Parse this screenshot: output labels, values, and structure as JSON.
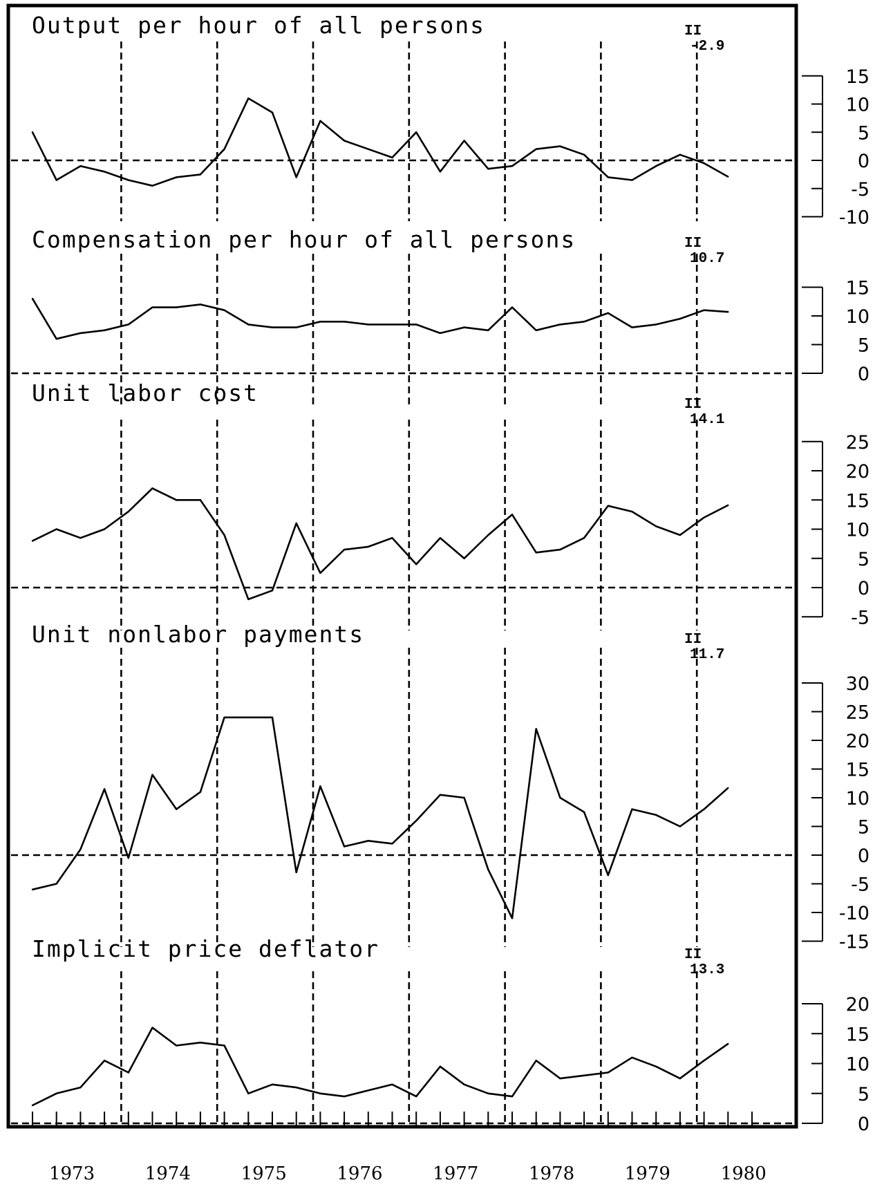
{
  "chart_data": {
    "type": "line",
    "x_quarters": [
      "1973 I",
      "1973 II",
      "1973 III",
      "1973 IV",
      "1974 I",
      "1974 II",
      "1974 III",
      "1974 IV",
      "1975 I",
      "1975 II",
      "1975 III",
      "1975 IV",
      "1976 I",
      "1976 II",
      "1976 III",
      "1976 IV",
      "1977 I",
      "1977 II",
      "1977 III",
      "1977 IV",
      "1978 I",
      "1978 II",
      "1978 III",
      "1978 IV",
      "1979 I",
      "1979 II",
      "1979 III",
      "1979 IV",
      "1980 I",
      "1980 II"
    ],
    "year_labels": [
      "1973",
      "1974",
      "1975",
      "1976",
      "1977",
      "1978",
      "1979",
      "1980"
    ],
    "dashed_years": [
      "1974",
      "1975",
      "1976",
      "1977",
      "1978",
      "1979",
      "1980"
    ],
    "panels": [
      {
        "title": "Output per hour of all persons",
        "callout_quarter": "II",
        "callout_value": "-2.9",
        "ylim": [
          -10,
          15
        ],
        "yticks": [
          "-10",
          "-5",
          "0",
          "5",
          "10",
          "15"
        ],
        "reference_zero": true,
        "values": [
          5,
          -3.5,
          -1,
          -2,
          -3.5,
          -4.5,
          -3,
          -2.5,
          2,
          11,
          8.5,
          -3,
          7,
          3.5,
          2,
          0.5,
          5,
          -2,
          3.5,
          -1.5,
          -1,
          2,
          2.5,
          1,
          -3,
          -3.5,
          -1,
          1,
          -0.5,
          -2.9
        ],
        "dashed_lines_through": [
          "1974",
          "1975",
          "1976",
          "1977",
          "1978",
          "1979",
          "1980"
        ]
      },
      {
        "title": "Compensation per hour of all persons",
        "callout_quarter": "II",
        "callout_value": "10.7",
        "ylim": [
          0,
          15
        ],
        "yticks": [
          "0",
          "5",
          "10",
          "15"
        ],
        "reference_zero": true,
        "values": [
          13,
          6,
          7,
          7.5,
          8.5,
          11.5,
          11.5,
          12,
          11,
          8.5,
          8,
          8,
          9,
          9,
          8.5,
          8.5,
          8.5,
          7,
          8,
          7.5,
          11.5,
          7.5,
          8.5,
          9,
          10.5,
          8,
          8.5,
          9.5,
          11,
          10.7
        ],
        "dashed_lines_through": [
          "1974",
          "1975",
          "1976",
          "1977",
          "1978",
          "1979",
          "1980"
        ]
      },
      {
        "title": "Unit labor cost",
        "callout_quarter": "II",
        "callout_value": "14.1",
        "ylim": [
          -5,
          25
        ],
        "yticks": [
          "-5",
          "0",
          "5",
          "10",
          "15",
          "20",
          "25"
        ],
        "reference_zero": true,
        "values": [
          8,
          10,
          8.5,
          10,
          13,
          17,
          15,
          15,
          9,
          -2,
          -0.5,
          11,
          2.5,
          6.5,
          7,
          8.5,
          4,
          8.5,
          5,
          9,
          12.5,
          6,
          6.5,
          8.5,
          14,
          13,
          10.5,
          9,
          12,
          14.1
        ],
        "dashed_lines_through": [
          "1974",
          "1975",
          "1976",
          "1977",
          "1978",
          "1979",
          "1980"
        ]
      },
      {
        "title": "Unit nonlabor payments",
        "callout_quarter": "II",
        "callout_value": "11.7",
        "ylim": [
          -15,
          30
        ],
        "yticks": [
          "-15",
          "-10",
          "-5",
          "0",
          "5",
          "10",
          "15",
          "20",
          "25",
          "30"
        ],
        "reference_zero": true,
        "values": [
          -6,
          -5,
          1,
          11.5,
          -0.5,
          14,
          8,
          11,
          24,
          24,
          24,
          -3,
          12,
          1.5,
          2.5,
          2,
          6,
          10.5,
          10,
          -2.5,
          -11,
          22,
          10,
          7.5,
          -3.5,
          8,
          7,
          5,
          8,
          11.7
        ],
        "dashed_lines_through": [
          "1974",
          "1975",
          "1976",
          "1977",
          "1978",
          "1979",
          "1980"
        ]
      },
      {
        "title": "Implicit price deflator",
        "callout_quarter": "II",
        "callout_value": "13.3",
        "ylim": [
          0,
          20
        ],
        "yticks": [
          "0",
          "5",
          "10",
          "15",
          "20"
        ],
        "reference_zero": true,
        "values": [
          3,
          5,
          6,
          10.5,
          8.5,
          16,
          13,
          13.5,
          13,
          5,
          6.5,
          6,
          5,
          4.5,
          5.5,
          6.5,
          4.5,
          9.5,
          6.5,
          5,
          4.5,
          10.5,
          7.5,
          8,
          8.5,
          11,
          9.5,
          7.5,
          10.5,
          13.3
        ],
        "dashed_lines_through": [
          "1974",
          "1975",
          "1976",
          "1977",
          "1978",
          "1979",
          "1980"
        ]
      }
    ]
  }
}
